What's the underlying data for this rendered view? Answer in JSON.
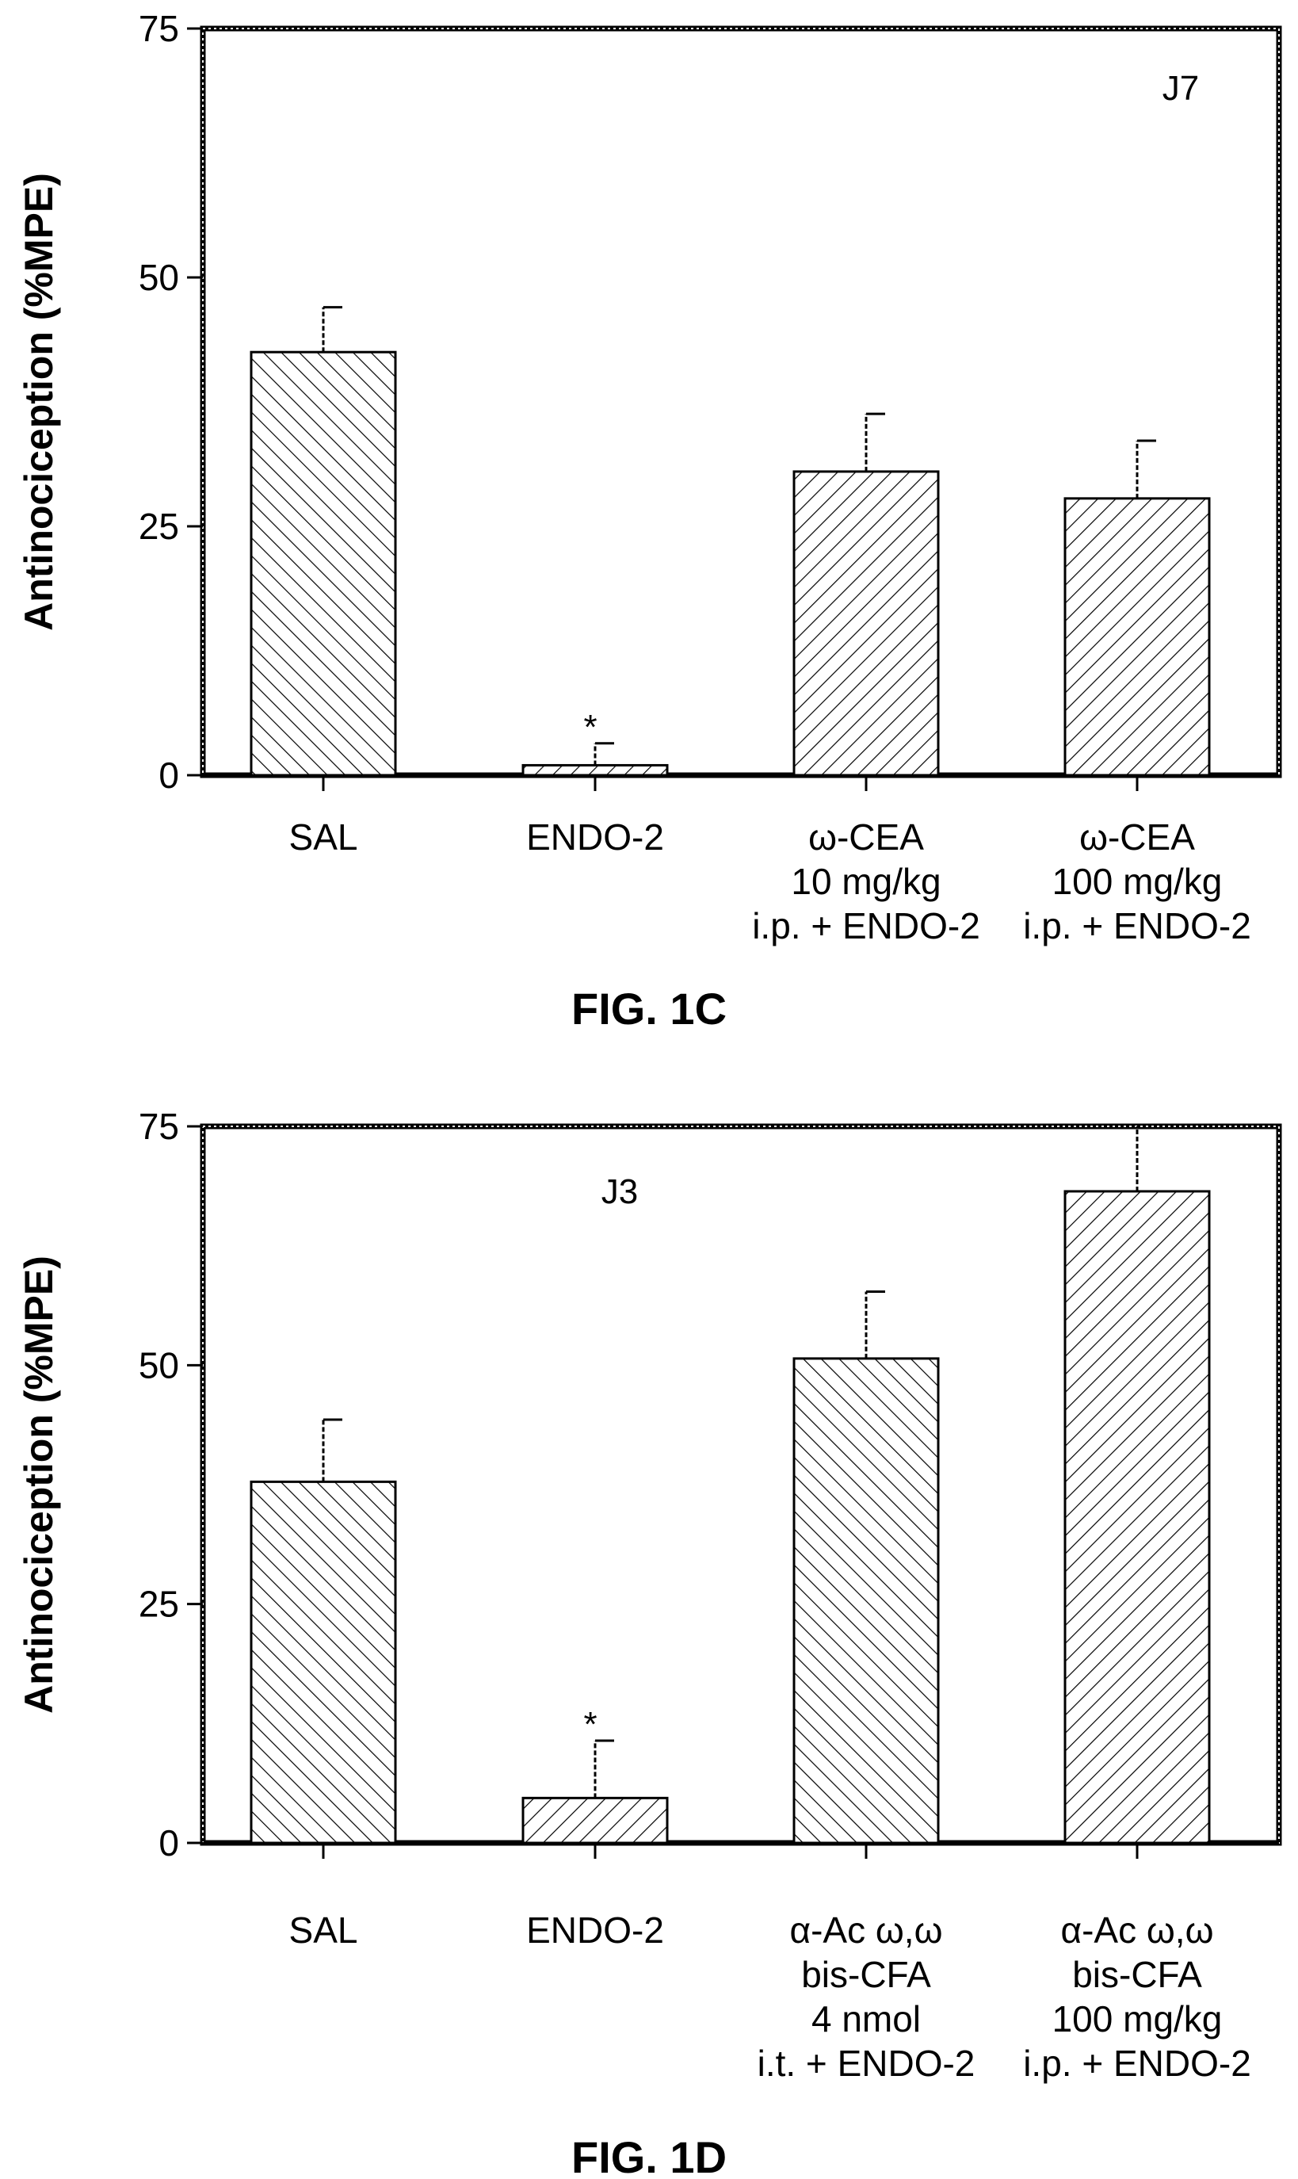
{
  "chart_data": [
    {
      "type": "bar",
      "figure_label": "FIG. 1C",
      "panel_label": "J7",
      "ylabel": "Antinociception (%MPE)",
      "ylim": [
        0,
        75
      ],
      "yticks": [
        "0",
        "25",
        "50",
        "75"
      ],
      "categories": [
        [
          "SAL"
        ],
        [
          "ENDO-2"
        ],
        [
          "ω-CEA",
          "10 mg/kg",
          "i.p. + ENDO-2"
        ],
        [
          "ω-CEA",
          "100 mg/kg",
          "i.p. + ENDO-2"
        ]
      ],
      "values": [
        42.5,
        1.0,
        30.5,
        27.8
      ],
      "errors": [
        4.5,
        2.2,
        5.8,
        5.8
      ],
      "significance": [
        "",
        "*",
        "",
        ""
      ],
      "hatch": [
        "backslash",
        "slash",
        "slash",
        "slash"
      ],
      "grid": false
    },
    {
      "type": "bar",
      "figure_label": "FIG. 1D",
      "panel_label": "J3",
      "ylabel": "Antinociception (%MPE)",
      "ylim": [
        0,
        75
      ],
      "yticks": [
        "0",
        "25",
        "50",
        "75"
      ],
      "categories": [
        [
          "SAL"
        ],
        [
          "ENDO-2"
        ],
        [
          "α-Ac ω,ω",
          "bis-CFA",
          "4 nmol",
          "i.t. + ENDO-2"
        ],
        [
          "α-Ac ω,ω",
          "bis-CFA",
          "100 mg/kg",
          "i.p. + ENDO-2"
        ]
      ],
      "values": [
        37.8,
        4.7,
        50.7,
        68.2
      ],
      "errors": [
        6.5,
        6.0,
        7.0,
        7.0
      ],
      "significance": [
        "",
        "*",
        "",
        ""
      ],
      "hatch": [
        "backslash",
        "slash",
        "backslash",
        "slash"
      ],
      "grid": false
    }
  ]
}
